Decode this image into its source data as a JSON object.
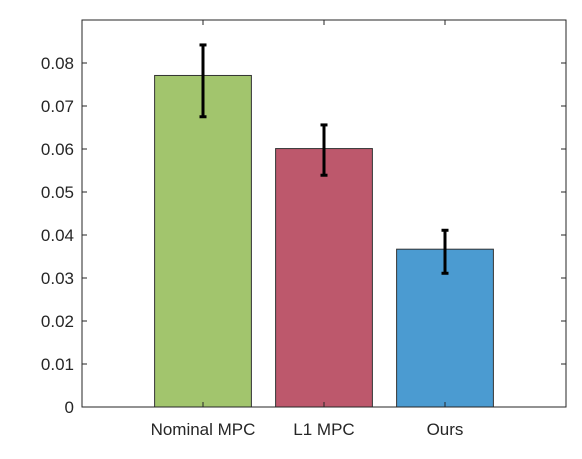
{
  "chart_data": {
    "type": "bar",
    "categories": [
      "Nominal MPC",
      "L1 MPC",
      "Ours"
    ],
    "values": [
      0.0771,
      0.0601,
      0.0367
    ],
    "errors": [
      [
        0.0675,
        0.0842
      ],
      [
        0.0539,
        0.0656
      ],
      [
        0.0311,
        0.0411
      ]
    ],
    "colors": [
      "#a2c56d",
      "#bd586c",
      "#4b9bd1"
    ],
    "ylim": [
      0,
      0.09
    ],
    "yticks": [
      "0",
      "0.01",
      "0.02",
      "0.03",
      "0.04",
      "0.05",
      "0.06",
      "0.07",
      "0.08"
    ],
    "ytick_values": [
      0,
      0.01,
      0.02,
      0.03,
      0.04,
      0.05,
      0.06,
      0.07,
      0.08
    ],
    "grid": false,
    "title": "",
    "xlabel": "",
    "ylabel": ""
  }
}
